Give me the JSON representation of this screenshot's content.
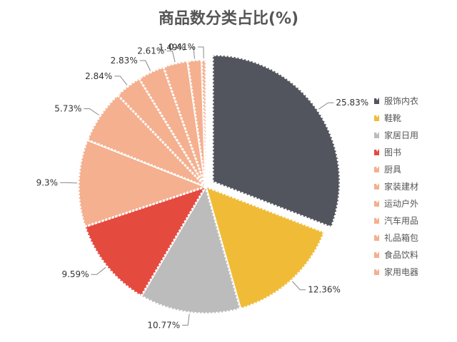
{
  "chart_data": {
    "type": "pie",
    "title": "商品数分类占比(%)",
    "categories": [
      "服饰内衣",
      "鞋靴",
      "家居日用",
      "图书",
      "厨具",
      "家装建材",
      "运动户外",
      "汽车用品",
      "礼品箱包",
      "食品饮料",
      "家用电器"
    ],
    "values": [
      25.83,
      12.36,
      10.77,
      9.59,
      9.3,
      5.73,
      2.84,
      2.83,
      2.61,
      1.49,
      0.41
    ],
    "value_labels": [
      "25.83%",
      "12.36%",
      "10.77%",
      "9.59%",
      "9.3%",
      "5.73%",
      "2.84%",
      "2.83%",
      "2.61%",
      "1.49%",
      "0.41%"
    ],
    "colors": [
      "#52555e",
      "#f0bc38",
      "#bcbcbc",
      "#e54a3f",
      "#f4b08f",
      "#f4b08f",
      "#f4b08f",
      "#f4b08f",
      "#f4b08f",
      "#f4b08f",
      "#f4b08f"
    ],
    "highlighted_slice": "服饰内衣",
    "legend_position": "right",
    "grid": false
  }
}
